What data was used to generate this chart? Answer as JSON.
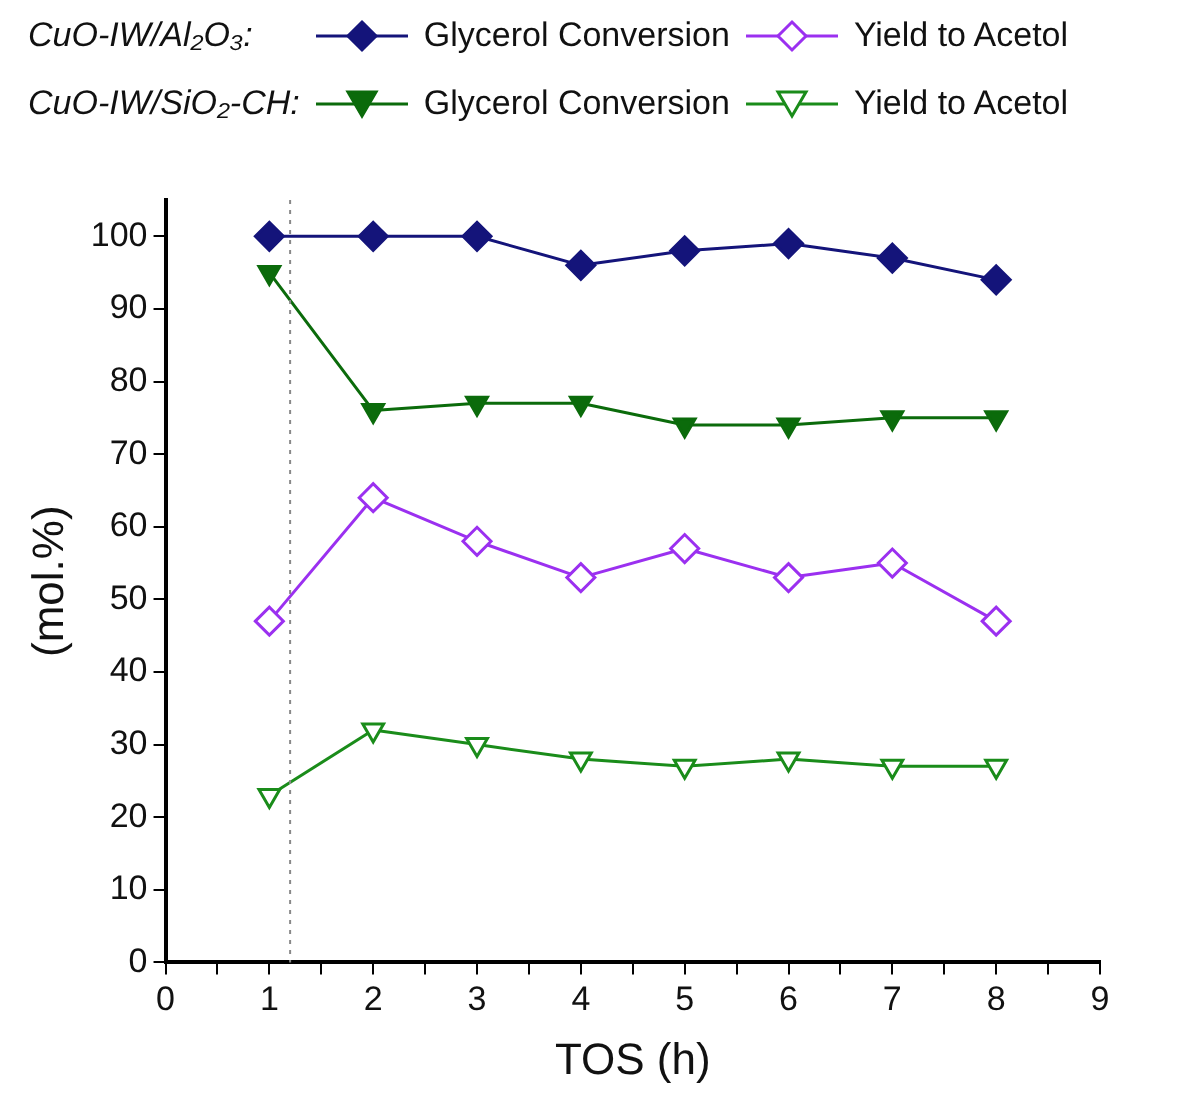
{
  "chart_data": {
    "type": "line",
    "xlabel": "TOS (h)",
    "ylabel": "(mol.%)",
    "annotations": [
      "CuO-IW/Al₂O₃:",
      "CuO-IW/SiO₂-CH:"
    ],
    "x": [
      1,
      2,
      3,
      4,
      5,
      6,
      7,
      8
    ],
    "series": [
      {
        "name": "Glycerol Conversion",
        "color": "#14147a",
        "marker": "diamond",
        "values": [
          100,
          100,
          100,
          96,
          98,
          99,
          97,
          94
        ]
      },
      {
        "name": "Yield to Acetol",
        "color": "#9b30f0",
        "marker": "diamond",
        "values": [
          47,
          64,
          58,
          53,
          57,
          53,
          55,
          47
        ]
      },
      {
        "name": "Glycerol Conversion",
        "color": "#0b6b0b",
        "marker": "triangle",
        "values": [
          95,
          76,
          77,
          77,
          74,
          74,
          75,
          75
        ]
      },
      {
        "name": "Yield to Acetol",
        "color": "#1a8c1a",
        "marker": "triangle",
        "values": [
          23,
          32,
          30,
          28,
          27,
          28,
          27,
          27
        ]
      }
    ],
    "xlim": [
      0,
      9
    ],
    "xticks": [
      0,
      {
        "value": 0.5,
        "label": null
      },
      1,
      {
        "value": 1.5,
        "label": null
      },
      2,
      {
        "value": 2.5,
        "label": null
      },
      3,
      {
        "value": 3.5,
        "label": null
      },
      4,
      {
        "value": 4.5,
        "label": null
      },
      5,
      {
        "value": 5.5,
        "label": null
      },
      6,
      {
        "value": 6.5,
        "label": null
      },
      7,
      {
        "value": 7.5,
        "label": null
      },
      8,
      {
        "value": 8.5,
        "label": null
      },
      9
    ],
    "ylim": [
      0,
      105
    ],
    "yticks": [
      0,
      10,
      20,
      30,
      40,
      50,
      60,
      70,
      80,
      90,
      100
    ],
    "ref_lines": [
      {
        "axis": "x",
        "value": 1.2,
        "color": "#888888",
        "line_style": "dotted"
      }
    ],
    "grid": false,
    "legend": "top",
    "line_style": "solid"
  }
}
